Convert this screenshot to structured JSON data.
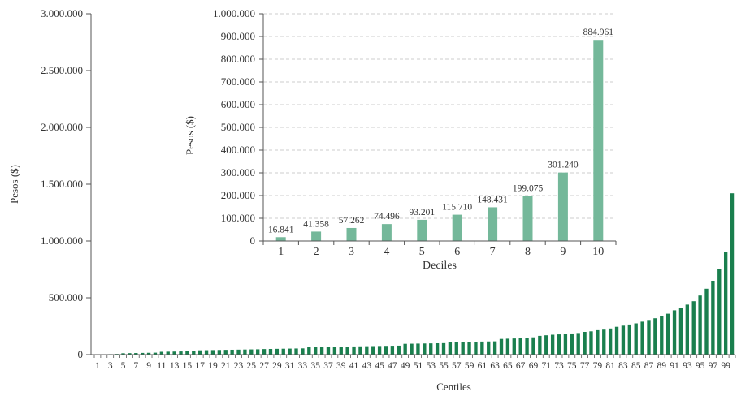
{
  "colors": {
    "main_bar": "#1a7f4e",
    "inset_bar": "#74b89a",
    "axis": "#555555",
    "grid": "#cccccc",
    "text": "#333333"
  },
  "chart_data": [
    {
      "type": "bar",
      "xlabel": "Centiles",
      "ylabel": "Pesos ($)",
      "ylim": [
        0,
        3000000
      ],
      "yticks": [
        0,
        500000,
        1000000,
        1500000,
        2000000,
        2500000,
        3000000
      ],
      "ytick_labels": [
        "0",
        "500.000",
        "1.000.000",
        "1.500.000",
        "2.000.000",
        "2.500.000",
        "3.000.000"
      ],
      "grid": false,
      "categories": [
        "1",
        "2",
        "3",
        "4",
        "5",
        "6",
        "7",
        "8",
        "9",
        "10",
        "11",
        "12",
        "13",
        "14",
        "15",
        "16",
        "17",
        "18",
        "19",
        "20",
        "21",
        "22",
        "23",
        "24",
        "25",
        "26",
        "27",
        "28",
        "29",
        "30",
        "31",
        "32",
        "33",
        "34",
        "35",
        "36",
        "37",
        "38",
        "39",
        "40",
        "41",
        "42",
        "43",
        "44",
        "45",
        "46",
        "47",
        "48",
        "49",
        "50",
        "51",
        "52",
        "53",
        "54",
        "55",
        "56",
        "57",
        "58",
        "59",
        "60",
        "61",
        "62",
        "63",
        "64",
        "65",
        "66",
        "67",
        "68",
        "69",
        "70",
        "71",
        "72",
        "73",
        "74",
        "75",
        "76",
        "77",
        "78",
        "79",
        "80",
        "81",
        "82",
        "83",
        "84",
        "85",
        "86",
        "87",
        "88",
        "89",
        "90",
        "91",
        "92",
        "93",
        "94",
        "95",
        "96",
        "97",
        "98",
        "99",
        "100"
      ],
      "xtick_labels": [
        "1",
        "3",
        "5",
        "7",
        "9",
        "11",
        "13",
        "15",
        "17",
        "19",
        "21",
        "23",
        "25",
        "27",
        "29",
        "31",
        "33",
        "35",
        "37",
        "39",
        "41",
        "43",
        "45",
        "47",
        "49",
        "51",
        "53",
        "55",
        "57",
        "59",
        "61",
        "63",
        "65",
        "67",
        "69",
        "71",
        "73",
        "75",
        "77",
        "79",
        "81",
        "83",
        "85",
        "87",
        "89",
        "91",
        "93",
        "95",
        "97",
        "99"
      ],
      "values": [
        500,
        2000,
        4000,
        6000,
        12000,
        13000,
        14000,
        15000,
        16000,
        17000,
        25000,
        26000,
        27000,
        28000,
        29000,
        30000,
        38000,
        39000,
        40000,
        41000,
        42000,
        43000,
        44000,
        45000,
        46000,
        47000,
        49000,
        50000,
        51000,
        52000,
        53000,
        54000,
        55000,
        65000,
        66000,
        67000,
        68000,
        69000,
        70000,
        71000,
        72000,
        73000,
        74000,
        75000,
        76000,
        77000,
        78000,
        79000,
        95000,
        96000,
        97000,
        98000,
        99000,
        100000,
        101000,
        110000,
        111000,
        112000,
        113000,
        114000,
        115000,
        116000,
        117000,
        138000,
        140000,
        142000,
        145000,
        148000,
        152000,
        165000,
        170000,
        175000,
        178000,
        182000,
        186000,
        190000,
        200000,
        205000,
        215000,
        220000,
        230000,
        245000,
        255000,
        265000,
        275000,
        290000,
        305000,
        320000,
        340000,
        360000,
        390000,
        410000,
        440000,
        470000,
        520000,
        580000,
        650000,
        750000,
        900000,
        1420000
      ]
    },
    {
      "type": "bar",
      "xlabel": "Deciles",
      "ylabel": "Pesos ($)",
      "ylim": [
        0,
        1000000
      ],
      "yticks": [
        0,
        100000,
        200000,
        300000,
        400000,
        500000,
        600000,
        700000,
        800000,
        900000,
        1000000
      ],
      "ytick_labels": [
        "0",
        "100.000",
        "200.000",
        "300.000",
        "400.000",
        "500.000",
        "600.000",
        "700.000",
        "800.000",
        "900.000",
        "1.000.000"
      ],
      "grid": true,
      "categories": [
        "1",
        "2",
        "3",
        "4",
        "5",
        "6",
        "7",
        "8",
        "9",
        "10"
      ],
      "values": [
        16841,
        41358,
        57262,
        74496,
        93201,
        115710,
        148431,
        199075,
        301240,
        884961
      ],
      "data_labels": [
        "16.841",
        "41.358",
        "57.262",
        "74.496",
        "93.201",
        "115.710",
        "148.431",
        "199.075",
        "301.240",
        "884.961"
      ]
    }
  ]
}
